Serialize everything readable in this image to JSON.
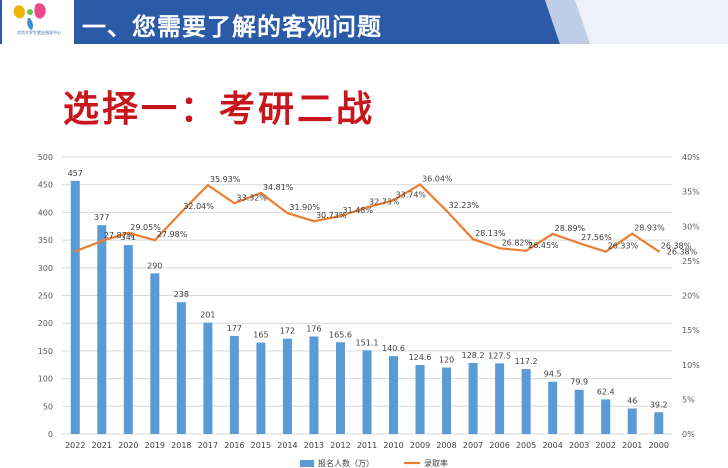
{
  "slide": {
    "title": "一、您需要了解的客观问题",
    "subtitle": "选择一：考研二战",
    "logo_text": "北京大学生就业指导中心",
    "colors": {
      "header_blue": "#2b5aa6",
      "title_red": "#c8161d",
      "bar": "#5b9bd5",
      "line": "#ed7d31"
    }
  },
  "chart_data": {
    "type": "bar",
    "title": "",
    "categories": [
      "2022",
      "2021",
      "2020",
      "2019",
      "2018",
      "2017",
      "2016",
      "2015",
      "2014",
      "2013",
      "2012",
      "2011",
      "2010",
      "2009",
      "2008",
      "2007",
      "2006",
      "2005",
      "2004",
      "2003",
      "2002",
      "2001",
      "2000"
    ],
    "series": [
      {
        "name": "报名人数（万）",
        "type": "bar",
        "axis": "left",
        "values": [
          457,
          377,
          341,
          290,
          238,
          201,
          177,
          165,
          172,
          176,
          165.6,
          151.1,
          140.6,
          124.6,
          120,
          128.2,
          127.5,
          117.2,
          94.5,
          79.9,
          62.4,
          46,
          39.2
        ],
        "labels": [
          "457",
          "377",
          "341",
          "290",
          "238",
          "201",
          "177",
          "165",
          "172",
          "176",
          "165.6",
          "151.1",
          "140.6",
          "124.6",
          "120",
          "128.2",
          "127.5",
          "117.2",
          "94.5",
          "79.9",
          "62.4",
          "46",
          "39.2"
        ]
      },
      {
        "name": "录取率",
        "type": "line",
        "axis": "right",
        "values": [
          26.38,
          27.87,
          29.05,
          27.98,
          32.04,
          35.93,
          33.32,
          34.81,
          31.9,
          30.73,
          31.48,
          32.73,
          33.74,
          36.04,
          32.23,
          28.13,
          26.82,
          26.45,
          28.89,
          27.56,
          26.33,
          28.93,
          26.38
        ],
        "labels": [
          "",
          "27.87%",
          "29.05%",
          "27.98%",
          "32.04%",
          "35.93%",
          "33.32%",
          "34.81%",
          "31.90%",
          "30.73%",
          "31.48%",
          "32.73%",
          "33.74%",
          "36.04%",
          "32.23%",
          "28.13%",
          "26.82%",
          "26.45%",
          "28.89%",
          "27.56%",
          "26.33%",
          "28.93%",
          "26.38%"
        ]
      }
    ],
    "y_left": {
      "min": 0,
      "max": 500,
      "ticks": [
        "0",
        "50",
        "100",
        "150",
        "200",
        "250",
        "300",
        "350",
        "400",
        "450",
        "500"
      ]
    },
    "y_right": {
      "min": 0,
      "max": 40,
      "ticks": [
        "0%",
        "5%",
        "10%",
        "15%",
        "20%",
        "25%",
        "30%",
        "35%",
        "40%"
      ]
    },
    "grid": true,
    "legend_position": "bottom"
  }
}
